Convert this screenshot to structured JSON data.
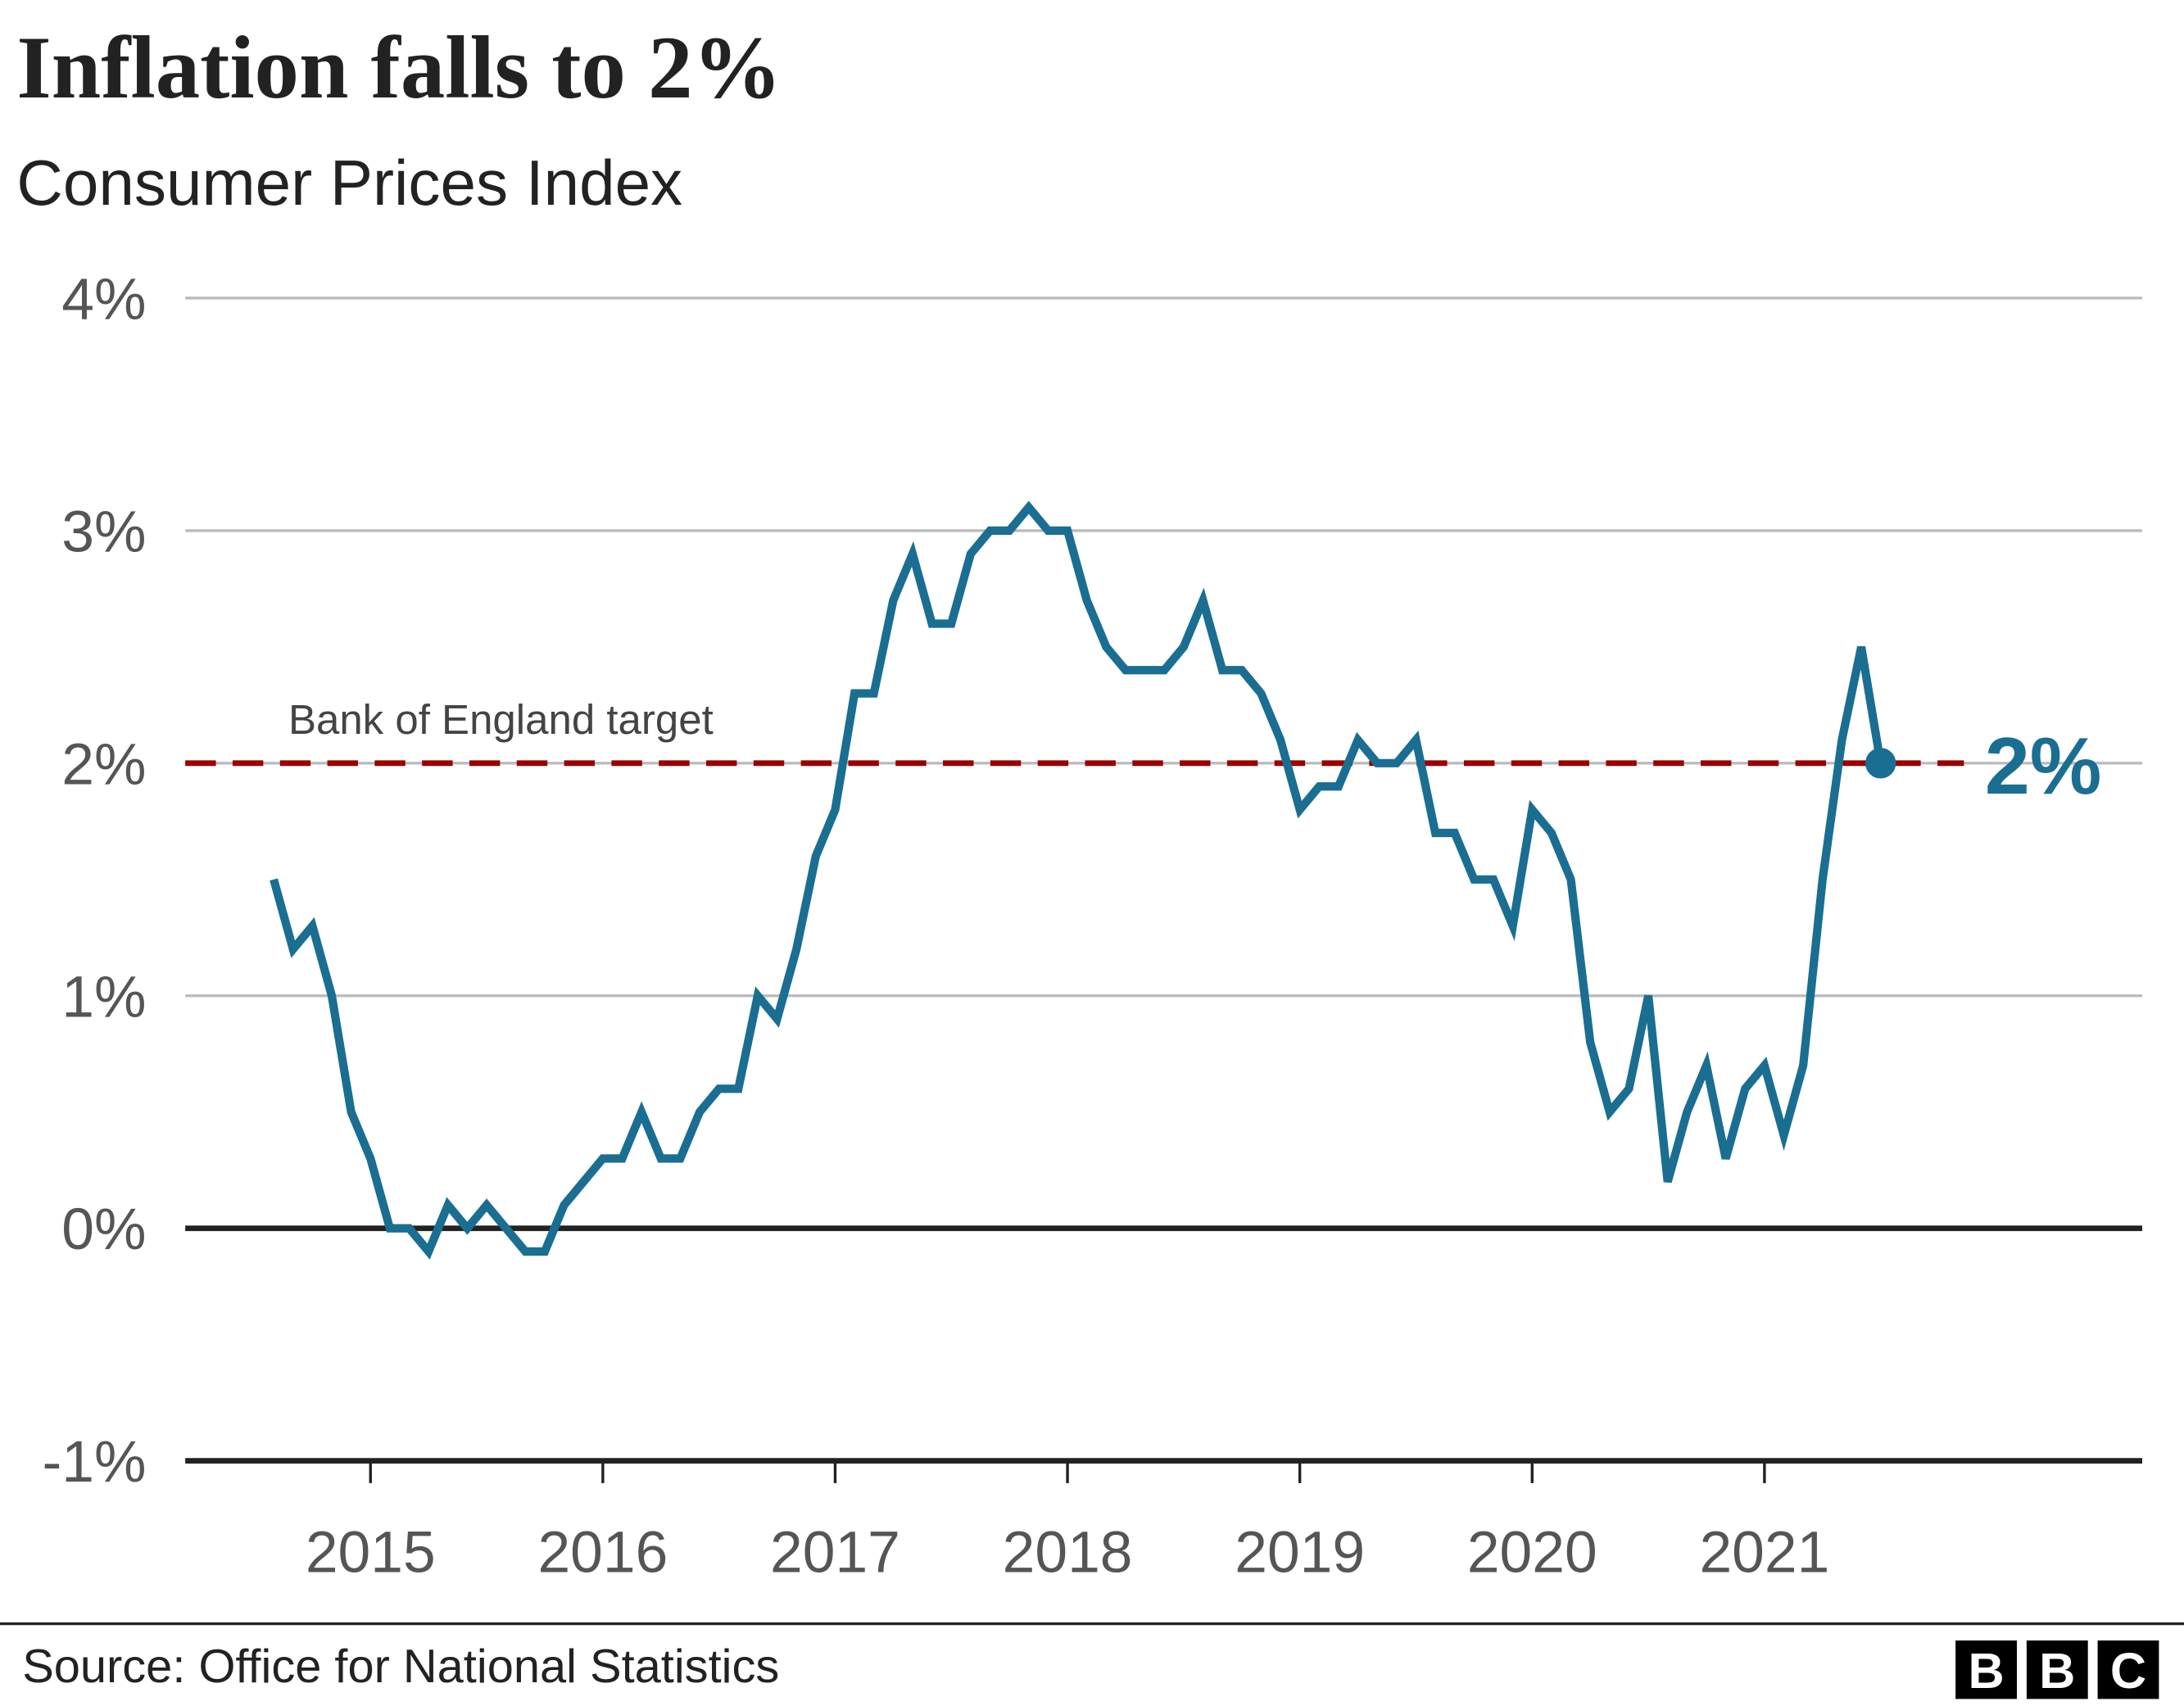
{
  "chart_data": {
    "type": "line",
    "title": "Inflation falls to 2%",
    "subtitle": "Consumer Prices Index",
    "xlabel": "",
    "ylabel": "",
    "x_start": "2014-08",
    "x_end": "2021-07",
    "x_frequency": "monthly",
    "x_ticks": [
      "2015",
      "2016",
      "2017",
      "2018",
      "2019",
      "2020",
      "2021"
    ],
    "y_ticks": [
      "4%",
      "3%",
      "2%",
      "1%",
      "0%",
      "-1%"
    ],
    "ylim": [
      -1,
      4
    ],
    "grid": true,
    "series": [
      {
        "color": "#1a6e91",
        "values": [
          1.5,
          1.2,
          1.3,
          1.0,
          0.5,
          0.3,
          0.0,
          0.0,
          -0.1,
          0.1,
          0.0,
          0.1,
          0.0,
          -0.1,
          -0.1,
          0.1,
          0.2,
          0.3,
          0.3,
          0.5,
          0.3,
          0.3,
          0.5,
          0.6,
          0.6,
          1.0,
          0.9,
          1.2,
          1.6,
          1.8,
          2.3,
          2.3,
          2.7,
          2.9,
          2.6,
          2.6,
          2.9,
          3.0,
          3.0,
          3.1,
          3.0,
          3.0,
          2.7,
          2.5,
          2.4,
          2.4,
          2.4,
          2.5,
          2.7,
          2.4,
          2.4,
          2.3,
          2.1,
          1.8,
          1.9,
          1.9,
          2.1,
          2.0,
          2.0,
          2.1,
          1.7,
          1.7,
          1.5,
          1.5,
          1.3,
          1.8,
          1.7,
          1.5,
          0.8,
          0.5,
          0.6,
          1.0,
          0.2,
          0.5,
          0.7,
          0.3,
          0.6,
          0.7,
          0.4,
          0.7,
          1.5,
          2.1,
          2.5,
          2.0
        ]
      }
    ],
    "reference_line": {
      "value": 2,
      "label": "Bank of England target",
      "color": "#990000",
      "style": "dashed"
    },
    "last_value_label": "2%"
  },
  "footer": {
    "source": "Source: Office for National Statistics",
    "logo_letters": [
      "B",
      "B",
      "C"
    ]
  }
}
